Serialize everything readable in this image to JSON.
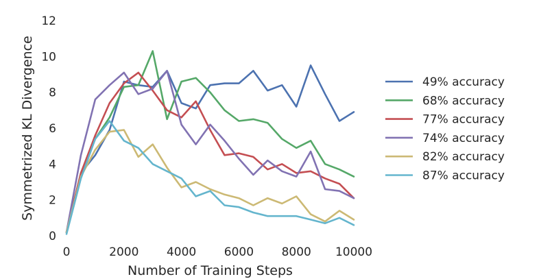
{
  "chart_data": {
    "type": "line",
    "xlabel": "Number of Training Steps",
    "ylabel": "Symmetrized KL Divergence",
    "xlim": [
      0,
      10000
    ],
    "ylim": [
      0,
      12
    ],
    "xticks": [
      0,
      2000,
      4000,
      6000,
      8000,
      10000
    ],
    "yticks": [
      0,
      2,
      4,
      6,
      8,
      10,
      12
    ],
    "xtick_labels": [
      "0",
      "2000",
      "4000",
      "6000",
      "8000",
      "10000"
    ],
    "ytick_labels": [
      "0",
      "2",
      "4",
      "6",
      "8",
      "10",
      "12"
    ],
    "grid": false,
    "legend_position": "right",
    "x": [
      0,
      500,
      1000,
      1500,
      2000,
      2500,
      3000,
      3500,
      4000,
      4500,
      5000,
      5500,
      6000,
      6500,
      7000,
      7500,
      8000,
      8500,
      9000,
      9500,
      10000
    ],
    "series": [
      {
        "name": "49% accuracy",
        "color": "#4c72b0",
        "values": [
          0.2,
          3.5,
          4.5,
          5.9,
          8.6,
          8.4,
          8.3,
          9.2,
          7.4,
          7.1,
          8.4,
          8.5,
          8.5,
          9.2,
          8.1,
          8.4,
          7.2,
          9.5,
          7.9,
          6.4,
          6.9
        ]
      },
      {
        "name": "68% accuracy",
        "color": "#55a868",
        "values": [
          0.2,
          3.5,
          5.4,
          6.6,
          8.3,
          8.4,
          10.3,
          6.5,
          8.6,
          8.8,
          8.0,
          7.0,
          6.4,
          6.5,
          6.3,
          5.4,
          4.9,
          5.3,
          4.0,
          3.7,
          3.3
        ]
      },
      {
        "name": "77% accuracy",
        "color": "#c44e52",
        "values": [
          0.2,
          3.5,
          5.6,
          7.4,
          8.5,
          9.1,
          8.1,
          7.0,
          6.6,
          7.5,
          5.9,
          4.5,
          4.6,
          4.4,
          3.7,
          4.0,
          3.5,
          3.6,
          3.2,
          2.9,
          2.1
        ]
      },
      {
        "name": "74% accuracy",
        "color": "#8172b2",
        "values": [
          0.2,
          4.5,
          7.6,
          8.4,
          9.1,
          7.9,
          8.2,
          9.2,
          6.2,
          5.1,
          6.2,
          5.3,
          4.3,
          3.4,
          4.2,
          3.6,
          3.3,
          4.7,
          2.6,
          2.5,
          2.1
        ]
      },
      {
        "name": "82% accuracy",
        "color": "#ccb974",
        "values": [
          0.2,
          3.3,
          4.8,
          5.8,
          5.9,
          4.4,
          5.1,
          3.8,
          2.7,
          3.0,
          2.6,
          2.3,
          2.1,
          1.7,
          2.1,
          1.8,
          2.2,
          1.2,
          0.8,
          1.4,
          0.9
        ]
      },
      {
        "name": "87% accuracy",
        "color": "#64b5cd",
        "values": [
          0.1,
          3.2,
          5.4,
          6.4,
          5.3,
          4.9,
          4.0,
          3.6,
          3.2,
          2.2,
          2.5,
          1.7,
          1.6,
          1.3,
          1.1,
          1.1,
          1.1,
          0.9,
          0.7,
          1.0,
          0.6
        ]
      }
    ]
  }
}
